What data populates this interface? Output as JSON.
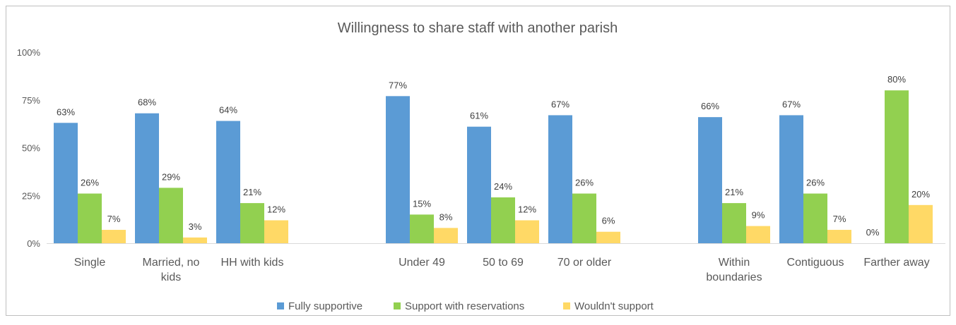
{
  "chart_data": {
    "type": "bar",
    "title": "Willingness to share staff with another parish",
    "xlabel": "",
    "ylabel": "",
    "ylim": [
      0,
      100
    ],
    "yticks": [
      "0%",
      "25%",
      "50%",
      "75%",
      "100%"
    ],
    "ytick_values": [
      0,
      25,
      50,
      75,
      100
    ],
    "grid": false,
    "legend_position": "bottom",
    "category_groups": [
      [
        "Single",
        "Married, no kids",
        "HH with kids"
      ],
      [
        "Under 49",
        "50 to 69",
        "70 or older"
      ],
      [
        "Within boundaries",
        "Contiguous",
        "Farther away"
      ]
    ],
    "categories": [
      "Single",
      "Married, no kids",
      "HH with kids",
      "Under 49",
      "50 to 69",
      "70 or older",
      "Within boundaries",
      "Contiguous",
      "Farther away"
    ],
    "category_label_lines": [
      [
        "Single"
      ],
      [
        "Married, no",
        "kids"
      ],
      [
        "HH with kids"
      ],
      [
        "Under 49"
      ],
      [
        "50 to 69"
      ],
      [
        "70 or older"
      ],
      [
        "Within",
        "boundaries"
      ],
      [
        "Contiguous"
      ],
      [
        "Farther away"
      ]
    ],
    "series": [
      {
        "name": "Fully supportive",
        "color": "#5b9bd5",
        "values": [
          63,
          68,
          64,
          77,
          61,
          67,
          66,
          67,
          0
        ],
        "labels": [
          "63%",
          "68%",
          "64%",
          "77%",
          "61%",
          "67%",
          "66%",
          "67%",
          "0%"
        ]
      },
      {
        "name": "Support with reservations",
        "color": "#92d050",
        "values": [
          26,
          29,
          21,
          15,
          24,
          26,
          21,
          26,
          80
        ],
        "labels": [
          "26%",
          "29%",
          "21%",
          "15%",
          "24%",
          "26%",
          "21%",
          "26%",
          "80%"
        ]
      },
      {
        "name": "Wouldn't support",
        "color": "#ffd966",
        "values": [
          7,
          3,
          12,
          8,
          12,
          6,
          9,
          7,
          20
        ],
        "labels": [
          "7%",
          "3%",
          "12%",
          "8%",
          "12%",
          "6%",
          "9%",
          "7%",
          "20%"
        ]
      }
    ]
  }
}
